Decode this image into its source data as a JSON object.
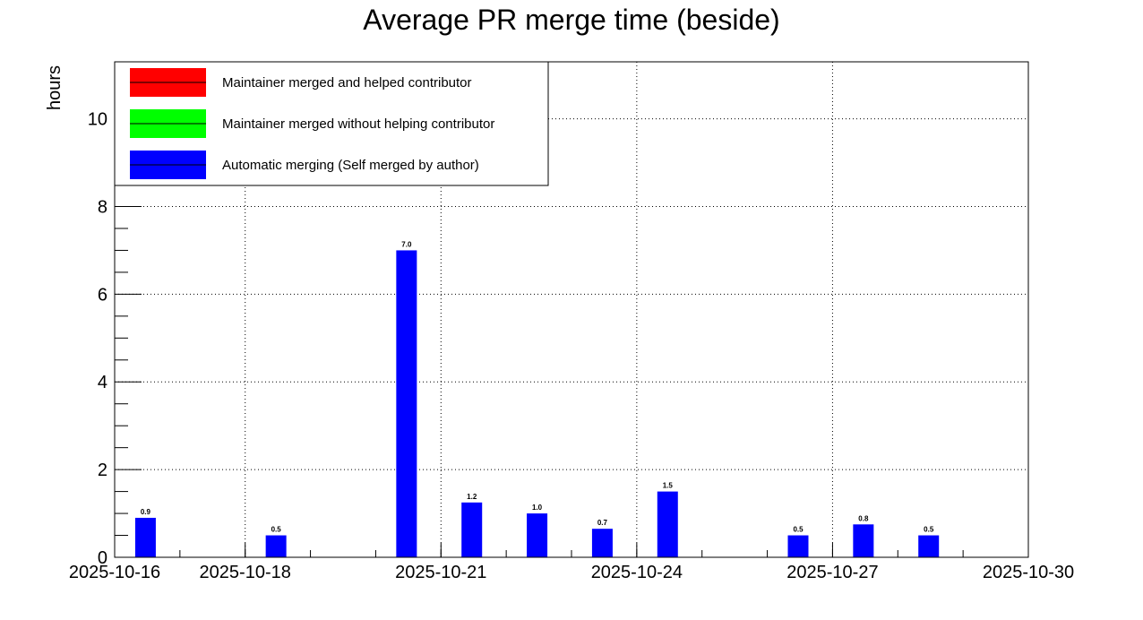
{
  "chart_data": {
    "type": "bar",
    "title": "Average PR merge time (beside)",
    "ylabel": "hours",
    "xlabel": "",
    "ylim": [
      0,
      11.3
    ],
    "xlim": [
      "2025-10-16",
      "2025-10-30"
    ],
    "x_ticks": [
      "2025-10-16",
      "2025-10-18",
      "2025-10-21",
      "2025-10-24",
      "2025-10-27",
      "2025-10-30"
    ],
    "y_ticks": [
      0,
      2,
      4,
      6,
      8,
      10
    ],
    "grid": true,
    "legend_position": "top-left",
    "series": [
      {
        "name": "Maintainer merged and helped contributor",
        "color": "#ff0000",
        "points": []
      },
      {
        "name": "Maintainer merged without helping contributor",
        "color": "#00ff00",
        "points": []
      },
      {
        "name": "Automatic merging (Self merged by author)",
        "color": "#0000ff",
        "points": [
          {
            "date": "2025-10-16",
            "value": 0.9,
            "label": "0.9"
          },
          {
            "date": "2025-10-18",
            "value": 0.5,
            "label": "0.5"
          },
          {
            "date": "2025-10-20",
            "value": 7.0,
            "label": "7.0"
          },
          {
            "date": "2025-10-21",
            "value": 1.25,
            "label": "1.2"
          },
          {
            "date": "2025-10-22",
            "value": 1.0,
            "label": "1.0"
          },
          {
            "date": "2025-10-23",
            "value": 0.65,
            "label": "0.7"
          },
          {
            "date": "2025-10-24",
            "value": 1.5,
            "label": "1.5"
          },
          {
            "date": "2025-10-26",
            "value": 0.5,
            "label": "0.5"
          },
          {
            "date": "2025-10-27",
            "value": 0.75,
            "label": "0.8"
          },
          {
            "date": "2025-10-28",
            "value": 0.5,
            "label": "0.5"
          }
        ]
      }
    ]
  }
}
